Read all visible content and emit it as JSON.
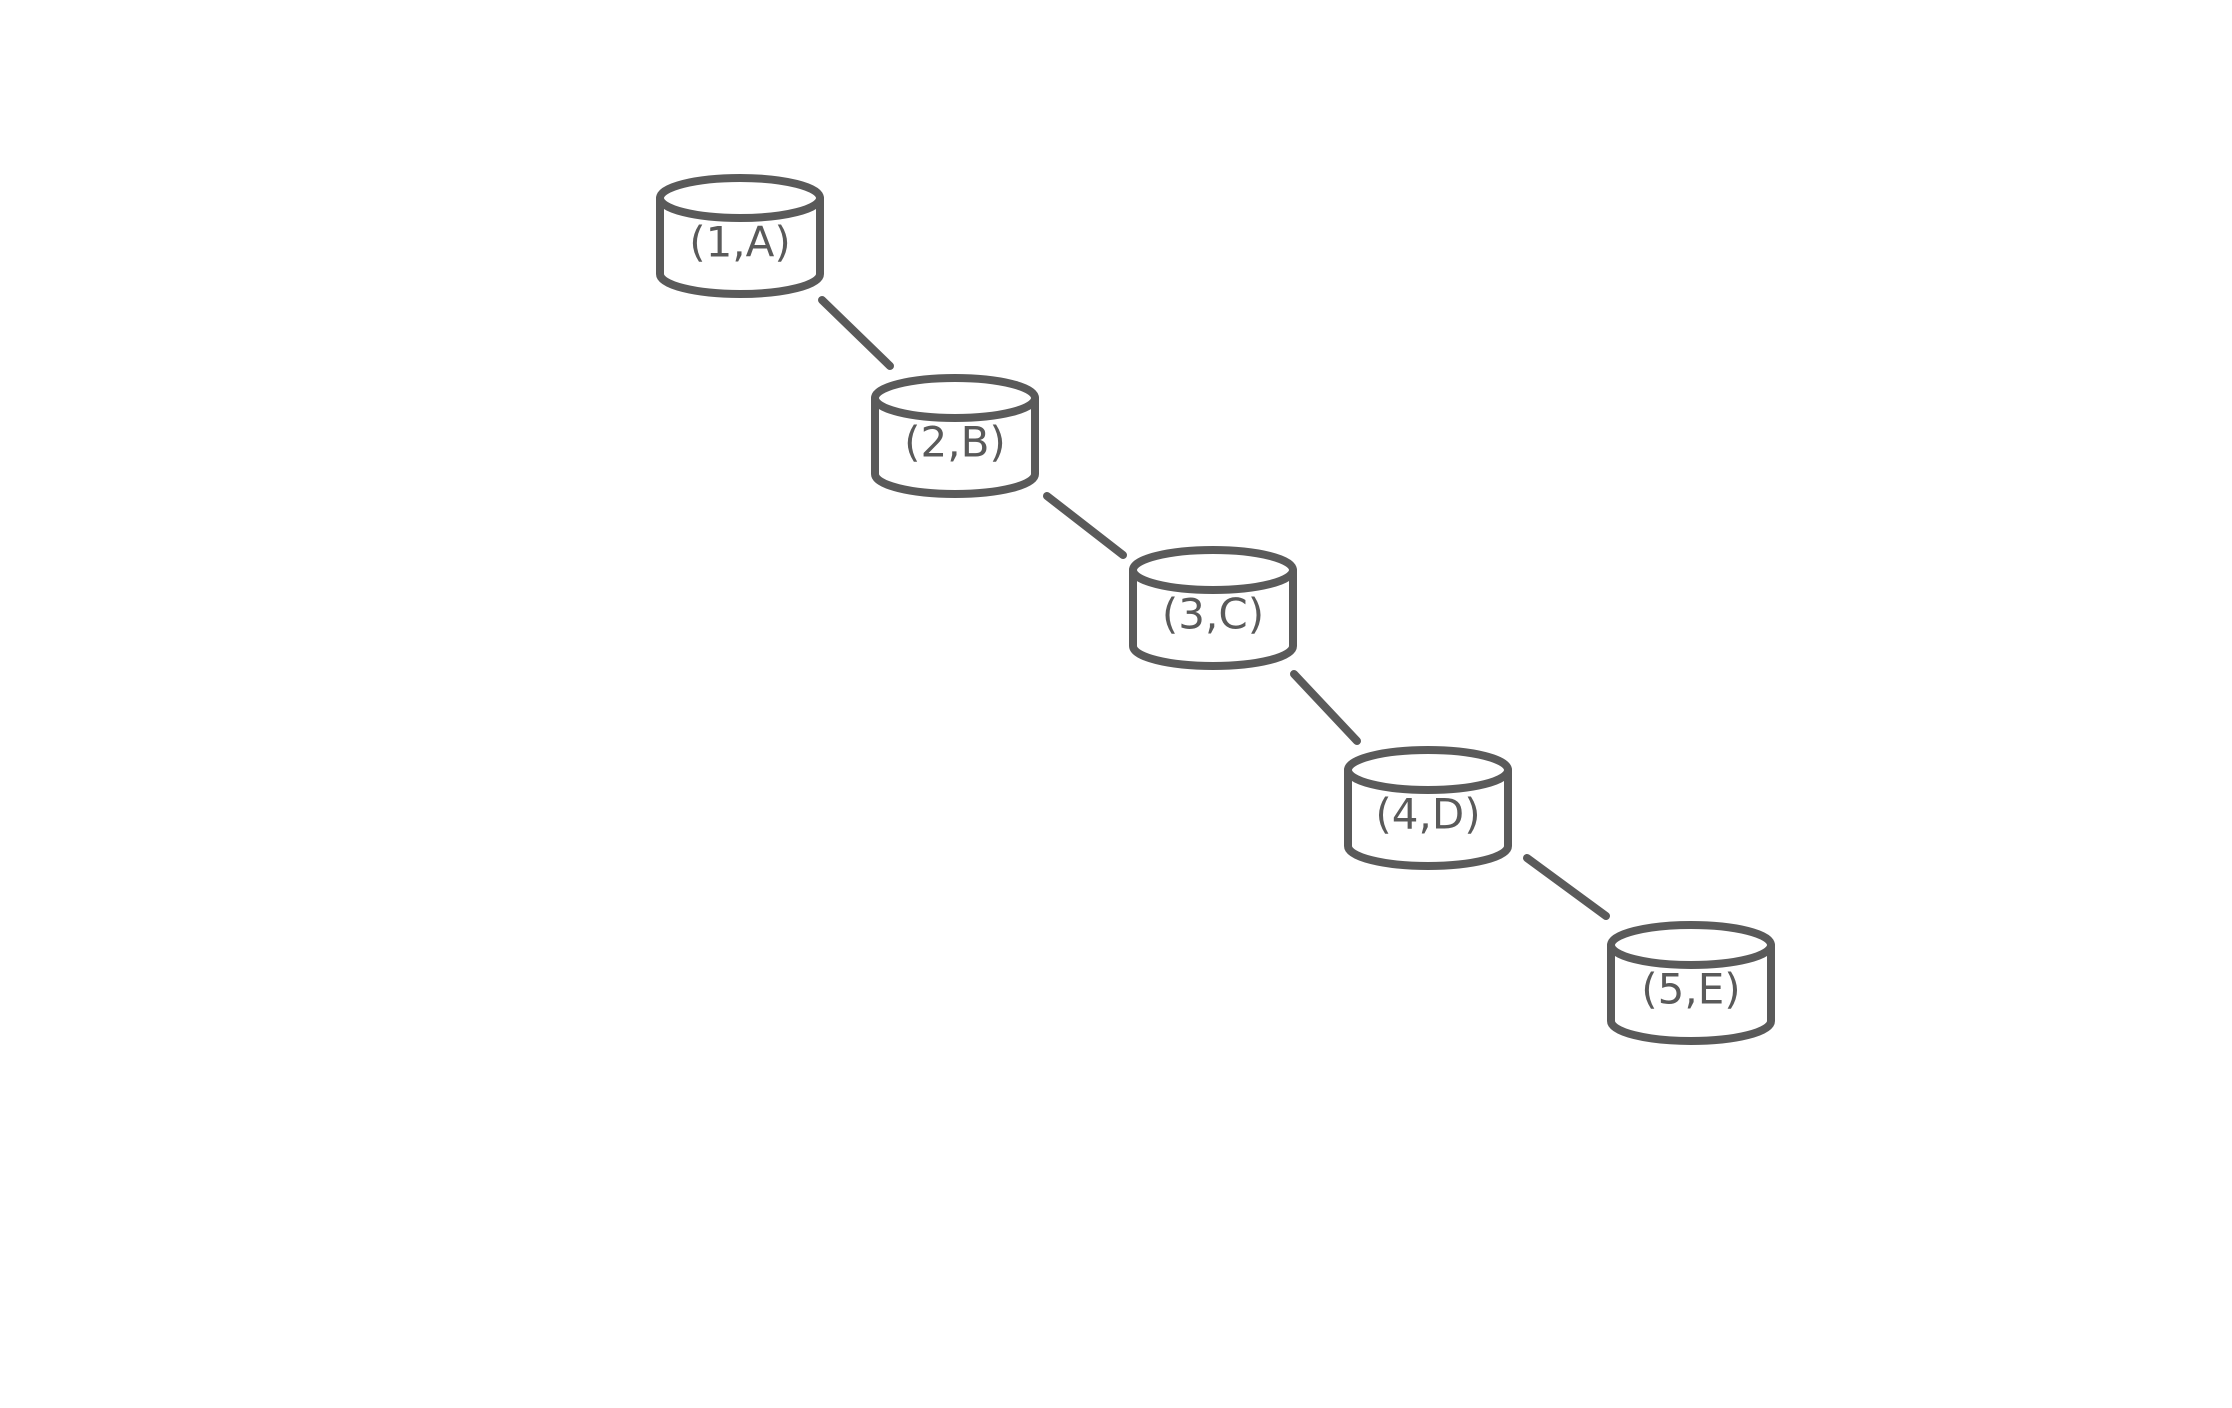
{
  "colors": {
    "stroke": "#5a5a5a",
    "label": "#5a5a5a",
    "fill": "#ffffff",
    "background": "#ffffff"
  },
  "nodes": [
    {
      "id": "1A",
      "label": "(1,A)",
      "shape": "cylinder-icon"
    },
    {
      "id": "2B",
      "label": "(2,B)",
      "shape": "cylinder-icon"
    },
    {
      "id": "3C",
      "label": "(3,C)",
      "shape": "cylinder-icon"
    },
    {
      "id": "4D",
      "label": "(4,D)",
      "shape": "cylinder-icon"
    },
    {
      "id": "5E",
      "label": "(5,E)",
      "shape": "cylinder-icon"
    }
  ],
  "edges": [
    {
      "from": "1A",
      "to": "2B"
    },
    {
      "from": "2B",
      "to": "3C"
    },
    {
      "from": "3C",
      "to": "4D"
    },
    {
      "from": "4D",
      "to": "5E"
    }
  ]
}
